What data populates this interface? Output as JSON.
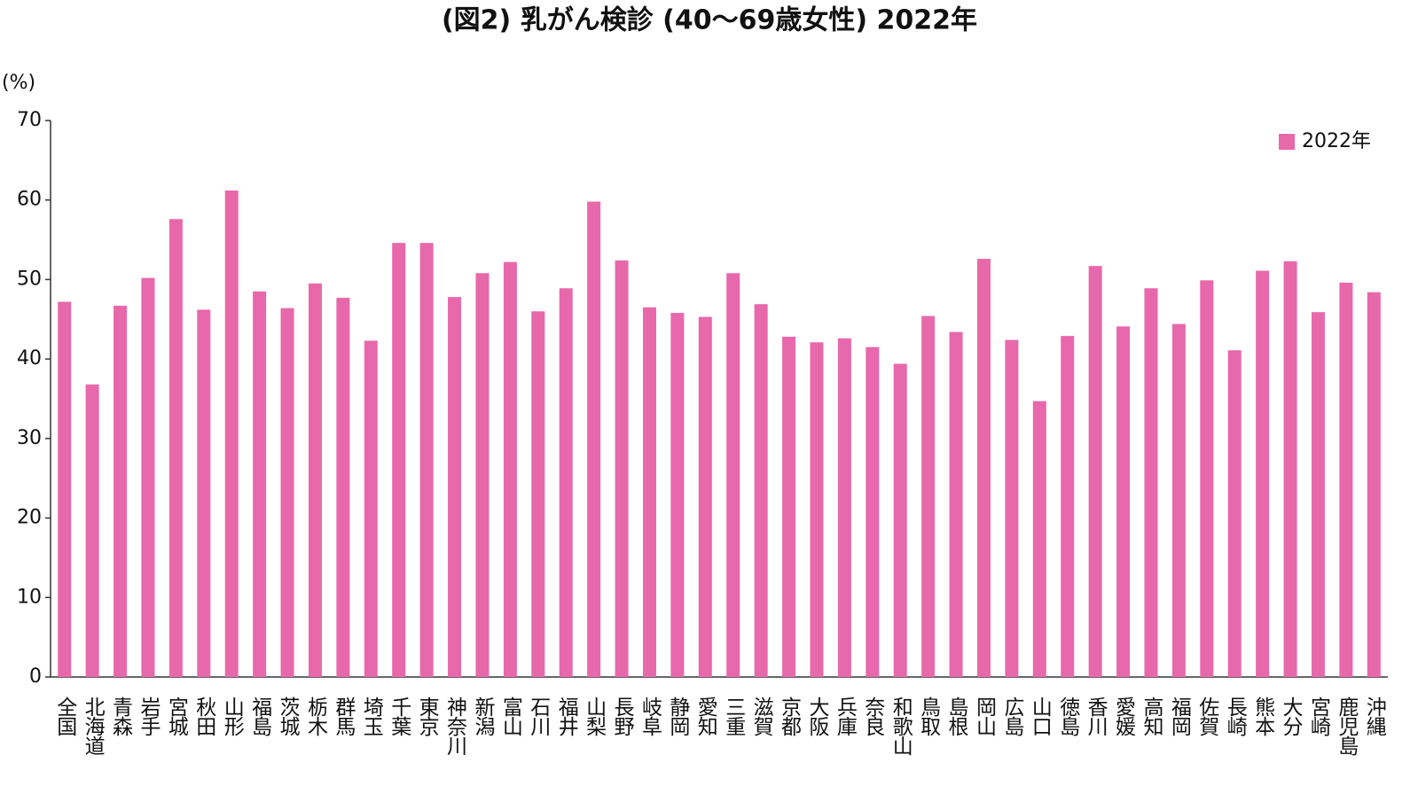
{
  "chart_data": {
    "type": "bar",
    "title": "(図2) 乳がん検診 (40～69歳女性) 2022年",
    "y_label": "(%)",
    "categories": [
      "全国",
      "北海道",
      "青森",
      "岩手",
      "宮城",
      "秋田",
      "山形",
      "福島",
      "茨城",
      "栃木",
      "群馬",
      "埼玉",
      "千葉",
      "東京",
      "神奈川",
      "新潟",
      "富山",
      "石川",
      "福井",
      "山梨",
      "長野",
      "岐阜",
      "静岡",
      "愛知",
      "三重",
      "滋賀",
      "京都",
      "大阪",
      "兵庫",
      "奈良",
      "和歌山",
      "鳥取",
      "島根",
      "岡山",
      "広島",
      "山口",
      "徳島",
      "香川",
      "愛媛",
      "高知",
      "福岡",
      "佐賀",
      "長崎",
      "熊本",
      "大分",
      "宮崎",
      "鹿児島",
      "沖縄"
    ],
    "series": [
      {
        "name": "2022年",
        "color": "#e868ac",
        "values": [
          47.2,
          36.8,
          46.7,
          50.2,
          57.6,
          46.2,
          61.2,
          48.5,
          46.4,
          49.5,
          47.7,
          42.3,
          54.6,
          54.6,
          47.8,
          50.8,
          52.2,
          46.0,
          48.9,
          59.8,
          52.4,
          46.5,
          45.8,
          45.3,
          50.8,
          46.9,
          42.8,
          42.1,
          42.6,
          41.5,
          39.4,
          45.4,
          43.4,
          52.6,
          42.4,
          34.7,
          42.9,
          51.7,
          44.1,
          48.9,
          44.4,
          49.9,
          41.1,
          51.1,
          52.3,
          45.9,
          49.6,
          48.4
        ]
      }
    ],
    "ylim": [
      0,
      70
    ],
    "yticks": [
      0,
      10,
      20,
      30,
      40,
      50,
      60,
      70
    ],
    "grid": false,
    "legend": "upper right"
  }
}
